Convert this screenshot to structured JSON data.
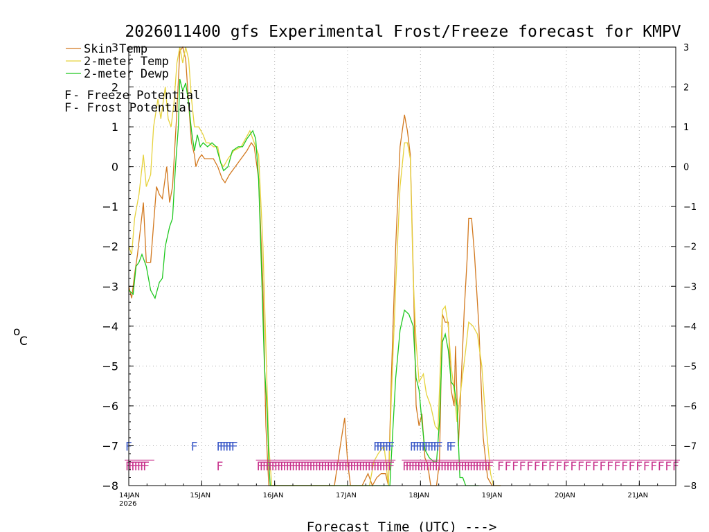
{
  "chart_data": {
    "type": "line",
    "title": "2026011400 gfs Experimental Frost/Freeze forecast for KMPV",
    "ylabel_degree": "o",
    "ylabel_unit": "C",
    "xlabel": "Forecast Time (UTC) --->",
    "xlim_days": [
      0,
      7.5
    ],
    "ylim": [
      -8,
      3
    ],
    "yticks": [
      -8,
      -7,
      -6,
      -5,
      -4,
      -3,
      -2,
      -1,
      0,
      1,
      2,
      3
    ],
    "xticks": [
      {
        "day": 0,
        "label": "14JAN",
        "sublabel": "2026"
      },
      {
        "day": 1,
        "label": "15JAN"
      },
      {
        "day": 2,
        "label": "16JAN"
      },
      {
        "day": 3,
        "label": "17JAN"
      },
      {
        "day": 4,
        "label": "18JAN"
      },
      {
        "day": 5,
        "label": "19JAN"
      },
      {
        "day": 6,
        "label": "20JAN"
      },
      {
        "day": 7,
        "label": "21JAN"
      }
    ],
    "legend": {
      "entries": [
        {
          "label": "Skin Temp",
          "color": "#d2781e"
        },
        {
          "label": "2-meter Temp",
          "color": "#e6d23c"
        },
        {
          "label": "2-meter Dewp",
          "color": "#1ec81e"
        }
      ],
      "potentials": [
        {
          "symbol": "F",
          "label": " - Freeze Potential",
          "color": "#c8328c"
        },
        {
          "symbol": "F",
          "label": " - Frost Potential",
          "color": "#3c5ac8"
        }
      ]
    },
    "series": [
      {
        "name": "Skin Temp",
        "color": "#d2781e",
        "points": [
          [
            0,
            -3.0
          ],
          [
            0.04,
            -3.3
          ],
          [
            0.08,
            -2.7
          ],
          [
            0.12,
            -2.2
          ],
          [
            0.2,
            -0.9
          ],
          [
            0.24,
            -2.4
          ],
          [
            0.3,
            -2.4
          ],
          [
            0.38,
            -0.5
          ],
          [
            0.42,
            -0.7
          ],
          [
            0.46,
            -0.8
          ],
          [
            0.52,
            0.0
          ],
          [
            0.56,
            -0.9
          ],
          [
            0.6,
            -0.5
          ],
          [
            0.66,
            1.4
          ],
          [
            0.7,
            2.9
          ],
          [
            0.74,
            3.0
          ],
          [
            0.78,
            2.7
          ],
          [
            0.82,
            1.6
          ],
          [
            0.86,
            0.6
          ],
          [
            0.9,
            0.3
          ],
          [
            0.92,
            0.0
          ],
          [
            0.96,
            0.2
          ],
          [
            1.0,
            0.3
          ],
          [
            1.04,
            0.2
          ],
          [
            1.1,
            0.2
          ],
          [
            1.16,
            0.2
          ],
          [
            1.22,
            0.0
          ],
          [
            1.28,
            -0.3
          ],
          [
            1.32,
            -0.4
          ],
          [
            1.38,
            -0.2
          ],
          [
            1.46,
            0.0
          ],
          [
            1.54,
            0.2
          ],
          [
            1.62,
            0.4
          ],
          [
            1.68,
            0.6
          ],
          [
            1.72,
            0.5
          ],
          [
            1.78,
            -0.3
          ],
          [
            1.84,
            -3.0
          ],
          [
            1.88,
            -6.5
          ],
          [
            1.92,
            -8.2
          ],
          [
            1.96,
            -8.2
          ],
          [
            2.6,
            -8.2
          ],
          [
            2.82,
            -8.2
          ],
          [
            2.9,
            -7.0
          ],
          [
            2.96,
            -6.3
          ],
          [
            3.0,
            -7.4
          ],
          [
            3.04,
            -8.2
          ],
          [
            3.1,
            -8.2
          ],
          [
            3.2,
            -8.2
          ],
          [
            3.28,
            -7.7
          ],
          [
            3.34,
            -8.2
          ],
          [
            3.4,
            -7.8
          ],
          [
            3.46,
            -7.7
          ],
          [
            3.52,
            -7.7
          ],
          [
            3.56,
            -8.2
          ],
          [
            3.6,
            -5.3
          ],
          [
            3.66,
            -2.0
          ],
          [
            3.72,
            0.5
          ],
          [
            3.78,
            1.3
          ],
          [
            3.82,
            0.9
          ],
          [
            3.86,
            0.3
          ],
          [
            3.9,
            -2.6
          ],
          [
            3.94,
            -6.0
          ],
          [
            3.98,
            -6.5
          ],
          [
            4.02,
            -6.2
          ],
          [
            4.06,
            -7.3
          ],
          [
            4.1,
            -7.5
          ],
          [
            4.14,
            -8.0
          ],
          [
            4.18,
            -8.2
          ],
          [
            4.22,
            -8.2
          ],
          [
            4.26,
            -7.4
          ],
          [
            4.3,
            -3.7
          ],
          [
            4.34,
            -3.9
          ],
          [
            4.38,
            -3.9
          ],
          [
            4.42,
            -5.6
          ],
          [
            4.46,
            -6.0
          ],
          [
            4.48,
            -4.5
          ],
          [
            4.52,
            -7.0
          ],
          [
            4.56,
            -5.3
          ],
          [
            4.6,
            -3.6
          ],
          [
            4.64,
            -2.3
          ],
          [
            4.66,
            -1.3
          ],
          [
            4.7,
            -1.3
          ],
          [
            4.74,
            -2.2
          ],
          [
            4.8,
            -4.0
          ],
          [
            4.86,
            -6.8
          ],
          [
            4.92,
            -7.8
          ],
          [
            4.98,
            -8.2
          ],
          [
            5.1,
            -8.2
          ]
        ]
      },
      {
        "name": "2-meter Temp",
        "color": "#e6d23c",
        "points": [
          [
            0,
            -2.0
          ],
          [
            0.04,
            -2.2
          ],
          [
            0.08,
            -1.3
          ],
          [
            0.14,
            -0.7
          ],
          [
            0.2,
            0.3
          ],
          [
            0.24,
            -0.5
          ],
          [
            0.3,
            -0.2
          ],
          [
            0.34,
            1.0
          ],
          [
            0.4,
            1.7
          ],
          [
            0.44,
            1.2
          ],
          [
            0.5,
            2.0
          ],
          [
            0.54,
            1.2
          ],
          [
            0.58,
            1.0
          ],
          [
            0.62,
            1.6
          ],
          [
            0.66,
            2.6
          ],
          [
            0.7,
            3.1
          ],
          [
            0.74,
            2.6
          ],
          [
            0.78,
            3.0
          ],
          [
            0.82,
            2.7
          ],
          [
            0.86,
            1.7
          ],
          [
            0.9,
            1.0
          ],
          [
            0.96,
            1.0
          ],
          [
            1.02,
            0.8
          ],
          [
            1.06,
            0.6
          ],
          [
            1.1,
            0.6
          ],
          [
            1.16,
            0.5
          ],
          [
            1.22,
            0.5
          ],
          [
            1.26,
            0.1
          ],
          [
            1.3,
            0.0
          ],
          [
            1.36,
            0.2
          ],
          [
            1.44,
            0.4
          ],
          [
            1.54,
            0.5
          ],
          [
            1.6,
            0.7
          ],
          [
            1.66,
            0.9
          ],
          [
            1.72,
            0.6
          ],
          [
            1.78,
            0.3
          ],
          [
            1.84,
            -2.0
          ],
          [
            1.88,
            -4.5
          ],
          [
            1.92,
            -7.0
          ],
          [
            1.96,
            -8.2
          ],
          [
            2.6,
            -8.2
          ],
          [
            3.3,
            -8.2
          ],
          [
            3.36,
            -7.4
          ],
          [
            3.42,
            -7.2
          ],
          [
            3.5,
            -7.0
          ],
          [
            3.56,
            -8.2
          ],
          [
            3.6,
            -5.8
          ],
          [
            3.66,
            -3.0
          ],
          [
            3.72,
            -0.5
          ],
          [
            3.78,
            0.6
          ],
          [
            3.82,
            0.6
          ],
          [
            3.86,
            0.2
          ],
          [
            3.9,
            -2.8
          ],
          [
            3.94,
            -4.4
          ],
          [
            3.98,
            -5.4
          ],
          [
            4.04,
            -5.2
          ],
          [
            4.08,
            -5.7
          ],
          [
            4.14,
            -6.0
          ],
          [
            4.2,
            -6.5
          ],
          [
            4.24,
            -6.6
          ],
          [
            4.3,
            -3.6
          ],
          [
            4.34,
            -3.5
          ],
          [
            4.38,
            -4.0
          ],
          [
            4.42,
            -5.0
          ],
          [
            4.46,
            -5.6
          ],
          [
            4.5,
            -6.4
          ],
          [
            4.56,
            -5.5
          ],
          [
            4.62,
            -4.6
          ],
          [
            4.66,
            -3.9
          ],
          [
            4.72,
            -4.0
          ],
          [
            4.78,
            -4.2
          ],
          [
            4.84,
            -5.0
          ],
          [
            4.9,
            -6.5
          ],
          [
            4.96,
            -7.7
          ],
          [
            5.0,
            -8.2
          ],
          [
            5.1,
            -8.2
          ]
        ]
      },
      {
        "name": "2-meter Dewp",
        "color": "#1ec81e",
        "points": [
          [
            0,
            -3.1
          ],
          [
            0.06,
            -3.2
          ],
          [
            0.1,
            -2.5
          ],
          [
            0.14,
            -2.4
          ],
          [
            0.18,
            -2.2
          ],
          [
            0.24,
            -2.5
          ],
          [
            0.3,
            -3.1
          ],
          [
            0.36,
            -3.3
          ],
          [
            0.42,
            -2.9
          ],
          [
            0.46,
            -2.8
          ],
          [
            0.5,
            -2.0
          ],
          [
            0.56,
            -1.5
          ],
          [
            0.6,
            -1.3
          ],
          [
            0.64,
            0.0
          ],
          [
            0.68,
            1.0
          ],
          [
            0.7,
            2.2
          ],
          [
            0.74,
            1.9
          ],
          [
            0.78,
            2.1
          ],
          [
            0.82,
            1.6
          ],
          [
            0.86,
            0.9
          ],
          [
            0.9,
            0.4
          ],
          [
            0.94,
            0.8
          ],
          [
            0.98,
            0.5
          ],
          [
            1.02,
            0.6
          ],
          [
            1.08,
            0.5
          ],
          [
            1.14,
            0.6
          ],
          [
            1.2,
            0.5
          ],
          [
            1.26,
            0.1
          ],
          [
            1.3,
            -0.1
          ],
          [
            1.36,
            0.0
          ],
          [
            1.42,
            0.4
          ],
          [
            1.5,
            0.5
          ],
          [
            1.56,
            0.5
          ],
          [
            1.62,
            0.7
          ],
          [
            1.7,
            0.9
          ],
          [
            1.74,
            0.7
          ],
          [
            1.78,
            -0.3
          ],
          [
            1.82,
            -2.6
          ],
          [
            1.86,
            -5.0
          ],
          [
            1.9,
            -6.2
          ],
          [
            1.92,
            -7.4
          ],
          [
            1.94,
            -8.2
          ],
          [
            2.0,
            -8.2
          ],
          [
            3.58,
            -8.2
          ],
          [
            3.6,
            -7.3
          ],
          [
            3.66,
            -5.3
          ],
          [
            3.72,
            -4.1
          ],
          [
            3.78,
            -3.6
          ],
          [
            3.84,
            -3.7
          ],
          [
            3.9,
            -4.0
          ],
          [
            3.94,
            -5.3
          ],
          [
            3.98,
            -5.6
          ],
          [
            4.02,
            -6.4
          ],
          [
            4.06,
            -7.1
          ],
          [
            4.12,
            -7.3
          ],
          [
            4.18,
            -7.4
          ],
          [
            4.22,
            -7.4
          ],
          [
            4.26,
            -6.4
          ],
          [
            4.3,
            -4.4
          ],
          [
            4.34,
            -4.2
          ],
          [
            4.38,
            -4.6
          ],
          [
            4.42,
            -5.4
          ],
          [
            4.46,
            -5.5
          ],
          [
            4.5,
            -6.0
          ],
          [
            4.54,
            -7.8
          ],
          [
            4.58,
            -7.8
          ],
          [
            4.62,
            -8.2
          ],
          [
            4.8,
            -8.2
          ]
        ]
      }
    ],
    "freeze_potential_days": [
      0,
      0.04,
      0.08,
      0.12,
      0.16,
      0.2,
      0.24,
      1.25,
      1.8,
      1.84,
      1.88,
      1.92,
      1.96,
      2.0,
      2.04,
      2.08,
      2.12,
      2.16,
      2.2,
      2.24,
      2.28,
      2.32,
      2.36,
      2.4,
      2.44,
      2.48,
      2.52,
      2.56,
      2.6,
      2.64,
      2.68,
      2.72,
      2.76,
      2.8,
      2.84,
      2.88,
      2.92,
      2.96,
      3.0,
      3.04,
      3.08,
      3.12,
      3.16,
      3.2,
      3.24,
      3.28,
      3.32,
      3.36,
      3.4,
      3.44,
      3.48,
      3.52,
      3.56,
      3.6,
      3.8,
      3.84,
      3.88,
      3.92,
      3.96,
      4.0,
      4.04,
      4.08,
      4.12,
      4.16,
      4.2,
      4.24,
      4.28,
      4.32,
      4.36,
      4.4,
      4.44,
      4.48,
      4.52,
      4.56,
      4.6,
      4.64,
      4.68,
      4.72,
      4.76,
      4.8,
      4.84,
      4.88,
      4.92,
      4.96,
      5.1,
      5.2,
      5.3,
      5.4,
      5.5,
      5.6,
      5.7,
      5.8,
      5.9,
      6.0,
      6.1,
      6.2,
      6.3,
      6.4,
      6.5,
      6.6,
      6.7,
      6.8,
      6.9,
      7.0,
      7.1,
      7.2,
      7.3,
      7.4,
      7.5
    ],
    "frost_potential_days": [
      0,
      0.9,
      1.25,
      1.29,
      1.33,
      1.37,
      1.41,
      1.45,
      3.4,
      3.44,
      3.48,
      3.52,
      3.56,
      3.6,
      3.9,
      3.94,
      3.98,
      4.02,
      4.06,
      4.1,
      4.14,
      4.18,
      4.22,
      4.26,
      4.4,
      4.44
    ]
  }
}
